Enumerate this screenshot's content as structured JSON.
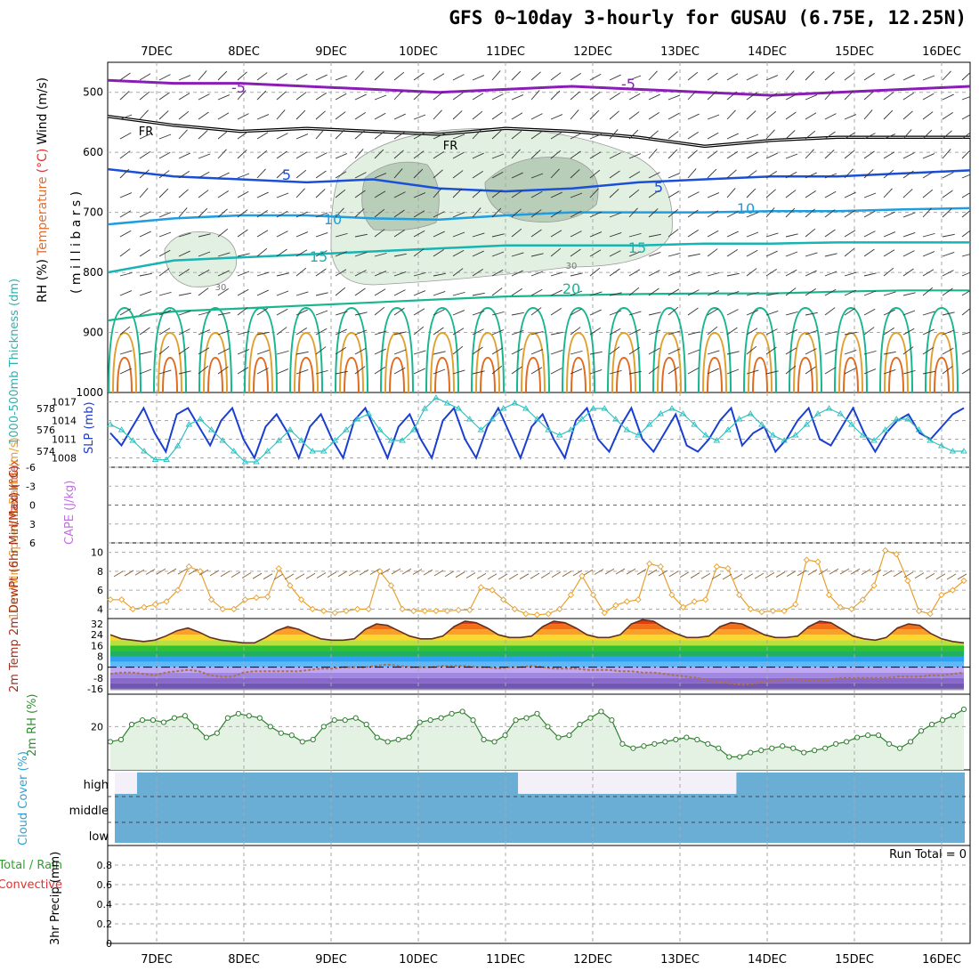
{
  "title": "GFS 0~10day 3-hourly for GUSAU (6.75E, 12.25N)",
  "chart_data": {
    "type": "line",
    "title": "GFS 0~10day 3-hourly for GUSAU (6.75E, 12.25N)",
    "days": [
      "7DEC",
      "8DEC",
      "9DEC",
      "10DEC",
      "11DEC",
      "12DEC",
      "13DEC",
      "14DEC",
      "15DEC",
      "16DEC"
    ],
    "panels": {
      "upper_air": {
        "ylabel_parts": [
          "RH (%)",
          "Temperature",
          "(°C)",
          "Wind",
          "(m/s)"
        ],
        "yaxis_name": "( m i l l i b a r s )",
        "yticks": [
          500,
          600,
          700,
          800,
          900,
          1000
        ],
        "ylim": [
          450,
          1000
        ],
        "isotherm_labels": [
          "-5",
          "-5",
          "FR",
          "FR",
          "5",
          "5",
          "10",
          "10",
          "15",
          "15",
          "20",
          "30",
          "30"
        ],
        "isotherms": [
          {
            "label": "-5",
            "p": [
              480,
              485,
              485,
              490,
              495,
              500,
              495,
              490,
              495,
              500,
              505,
              500,
              495,
              490
            ]
          },
          {
            "label": "FR",
            "p": [
              540,
              555,
              565,
              560,
              565,
              570,
              560,
              565,
              575,
              590,
              580,
              575,
              575,
              575
            ]
          },
          {
            "label": "5",
            "p": [
              628,
              640,
              645,
              650,
              645,
              660,
              665,
              660,
              650,
              645,
              640,
              640,
              635,
              630
            ]
          },
          {
            "label": "10",
            "p": [
              720,
              710,
              705,
              705,
              710,
              712,
              705,
              700,
              700,
              700,
              698,
              698,
              695,
              693
            ]
          },
          {
            "label": "15",
            "p": [
              800,
              780,
              775,
              770,
              765,
              760,
              755,
              755,
              755,
              752,
              752,
              750,
              750,
              750
            ]
          },
          {
            "label": "20",
            "p": [
              880,
              865,
              860,
              855,
              850,
              845,
              840,
              838,
              836,
              835,
              835,
              832,
              830,
              830
            ]
          }
        ]
      },
      "thickness_slp": {
        "ylabel_left": "1000-500mb Thickness (dm)",
        "ylabel_right": "SLP (mb)",
        "thickness_ticks": [
          574,
          576,
          578
        ],
        "slp_ticks": [
          1008,
          1011,
          1014,
          1017
        ],
        "slp": [
          1012,
          1010,
          1013,
          1016,
          1012,
          1009,
          1015,
          1016,
          1013,
          1010,
          1014,
          1016,
          1011,
          1008,
          1013,
          1015,
          1012,
          1008,
          1013,
          1015,
          1011,
          1008,
          1014,
          1016,
          1012,
          1008,
          1013,
          1015,
          1011,
          1008,
          1014,
          1016,
          1011,
          1008,
          1013,
          1016,
          1012,
          1008,
          1013,
          1015,
          1011,
          1008,
          1014,
          1016,
          1011,
          1009,
          1013,
          1016,
          1011,
          1009,
          1012,
          1015,
          1010,
          1009,
          1011,
          1014,
          1016,
          1010,
          1012,
          1013,
          1009,
          1011,
          1014,
          1016,
          1011,
          1010,
          1013,
          1016,
          1012,
          1009,
          1012,
          1014,
          1015,
          1012,
          1011,
          1013,
          1015,
          1016
        ],
        "thickness": [
          576.5,
          576,
          575,
          574,
          573.2,
          573.2,
          574.5,
          576.5,
          577,
          576,
          575,
          574,
          573,
          573,
          574,
          575,
          576,
          575,
          574,
          574,
          575,
          576,
          577,
          577.5,
          576,
          575,
          575,
          576,
          578,
          579,
          578.5,
          578,
          577,
          576,
          577,
          578,
          578.5,
          578,
          577,
          576,
          575.5,
          576,
          577,
          578,
          578,
          577,
          576,
          575.5,
          576.5,
          577.5,
          578,
          577.5,
          576.5,
          575.5,
          575,
          576,
          577,
          577.5,
          576.5,
          575.5,
          575,
          575.5,
          576.5,
          577.5,
          578,
          577.5,
          576.5,
          575.5,
          575,
          576,
          577,
          577,
          576,
          575,
          574.5,
          574,
          574
        ]
      },
      "li_cape": {
        "ylabel_left": "Lifted Index",
        "ylabel_right": "CAPE (J/kg)",
        "yticks": [
          -6,
          -3,
          0,
          3,
          6
        ],
        "ylim": [
          -6,
          6
        ]
      },
      "wind10m": {
        "ylabel": "10m Wind Speed & Barbs (m/s)",
        "yticks": [
          4,
          6,
          8,
          10
        ],
        "ylim": [
          3,
          11
        ],
        "speed": [
          5,
          5,
          4,
          4.2,
          4.5,
          4.8,
          6,
          8.5,
          8,
          5,
          4,
          4,
          5,
          5.2,
          5.3,
          8.3,
          6.5,
          5,
          4,
          3.8,
          3.6,
          3.8,
          4,
          4,
          8,
          6.5,
          4,
          3.8,
          3.8,
          3.8,
          3.8,
          3.9,
          3.9,
          6.3,
          6,
          5,
          4,
          3.5,
          3.4,
          3.5,
          4,
          5.5,
          7.5,
          5.5,
          3.6,
          4.4,
          4.8,
          5,
          8.8,
          8.5,
          5.5,
          4.2,
          4.8,
          5,
          8.5,
          8.3,
          5.5,
          4,
          3.7,
          3.8,
          3.8,
          4.5,
          9.2,
          9,
          5.5,
          4.2,
          4,
          5,
          6.5,
          10.2,
          9.8,
          7,
          3.8,
          3.5,
          5.5,
          6,
          7
        ]
      },
      "temp2m": {
        "ylabel": "2m Temp 2m DewPt (6hr Min/Max) (°C)",
        "yticks": [
          -16,
          -8,
          0,
          8,
          16,
          24,
          32
        ],
        "ylim": [
          -20,
          36
        ],
        "temp": [
          24,
          21,
          20,
          19,
          20,
          23,
          27,
          29,
          26,
          22,
          20,
          19,
          18,
          18,
          22,
          27,
          30,
          28,
          24,
          21,
          20,
          20,
          21,
          28,
          32,
          31,
          27,
          23,
          21,
          21,
          23,
          30,
          34,
          33,
          29,
          24,
          22,
          22,
          23,
          30,
          34,
          33,
          29,
          24,
          22,
          22,
          24,
          32,
          35,
          34,
          29,
          25,
          22,
          22,
          23,
          30,
          33,
          32,
          28,
          24,
          22,
          22,
          23,
          30,
          34,
          33,
          28,
          23,
          21,
          20,
          22,
          29,
          32,
          31,
          25,
          21,
          19,
          18
        ],
        "dewpoint": [
          -5,
          -4,
          -4,
          -5,
          -6,
          -4,
          -3,
          -2,
          -3,
          -6,
          -7,
          -7,
          -4,
          -3,
          -3,
          -3,
          -3,
          -3,
          -2,
          -1,
          -1,
          0,
          0,
          0,
          1,
          2,
          1,
          0,
          0,
          0,
          1,
          1,
          1,
          0,
          0,
          -1,
          0,
          0,
          1,
          0,
          -1,
          -1,
          -1,
          -2,
          -2,
          -2,
          -3,
          -3,
          -4,
          -4,
          -5,
          -6,
          -7,
          -8,
          -10,
          -11,
          -12,
          -13,
          -12,
          -11,
          -10,
          -9,
          -9,
          -10,
          -10,
          -9,
          -8,
          -8,
          -8,
          -8,
          -8,
          -7,
          -7,
          -7,
          -6,
          -6,
          -5,
          -4
        ]
      },
      "rh2m": {
        "ylabel": "2m RH (%)",
        "yticks": [
          20
        ],
        "ylim": [
          0,
          35
        ],
        "rh": [
          13,
          14,
          21,
          23,
          23,
          22,
          24,
          25,
          20,
          15,
          17,
          24,
          26,
          25,
          24,
          20,
          17,
          16,
          13,
          14,
          20,
          23,
          23,
          24,
          21,
          15,
          13,
          14,
          15,
          22,
          23,
          24,
          26,
          27,
          23,
          14,
          13,
          16,
          23,
          24,
          26,
          20,
          15,
          16,
          21,
          24,
          27,
          23,
          12,
          10,
          11,
          12,
          13,
          14,
          15,
          14,
          12,
          10,
          6,
          6,
          8,
          9,
          10,
          11,
          10,
          8,
          9,
          10,
          12,
          13,
          15,
          16,
          16,
          12,
          10,
          13,
          18,
          21,
          23,
          25,
          28
        ]
      },
      "cloud": {
        "ylabel": "Cloud Cover (%)",
        "levels": [
          "high",
          "middle",
          "low"
        ],
        "high_gap": [
          1,
          1,
          0,
          0,
          0,
          0,
          0,
          0,
          0,
          0,
          0,
          0,
          0,
          0,
          0,
          0,
          0,
          0,
          0,
          0,
          0,
          0,
          0,
          0,
          0,
          0,
          0,
          0,
          0,
          0,
          0,
          0,
          0,
          0,
          0,
          0,
          0,
          1,
          1,
          1,
          1,
          1,
          1,
          1,
          1,
          1,
          1,
          1,
          1,
          1,
          1,
          1,
          1,
          1,
          1,
          1,
          1,
          0,
          0,
          0,
          0,
          0,
          0,
          0,
          0,
          0,
          0,
          0,
          0,
          0,
          0,
          0,
          0,
          0,
          0,
          0,
          0,
          0
        ]
      },
      "precip": {
        "ylabel_parts": [
          "Total / Rain",
          "Convective",
          "3hr Precip (mm)"
        ],
        "yticks": [
          0,
          0.2,
          0.4,
          0.6,
          0.8
        ],
        "ylim": [
          0,
          1
        ],
        "run_total": "Run Total = 0"
      }
    }
  }
}
